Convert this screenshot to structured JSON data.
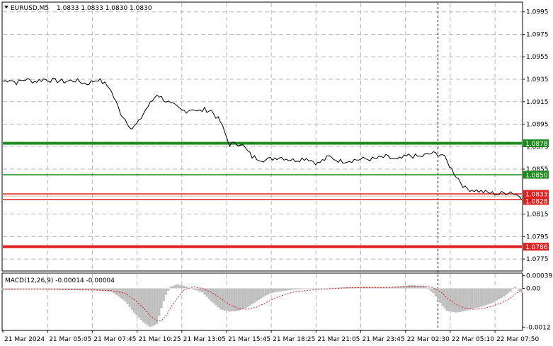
{
  "header": {
    "symbol_label": "EURUSD,M5",
    "ohlc": "1.0833 1.0833 1.0830 1.0830"
  },
  "macd": {
    "label": "MACD(12,26,9) -0.00014 -0.00004",
    "scale": [
      "0.00039",
      "0.00",
      "-0.0012"
    ]
  },
  "chart_data": [
    {
      "type": "line",
      "name": "price",
      "ylim": [
        1.0765,
        1.1003
      ],
      "y_ticks": [
        "1.0995",
        "1.0975",
        "1.0955",
        "1.0935",
        "1.0915",
        "1.0895",
        "1.0875",
        "1.0855",
        "1.0815",
        "1.0795",
        "1.0775"
      ],
      "x_labels": [
        "21 Mar 2024",
        "21 Mar 05:05",
        "21 Mar 07:45",
        "21 Mar 10:25",
        "21 Mar 13:05",
        "21 Mar 15:45",
        "21 Mar 18:25",
        "21 Mar 21:05",
        "21 Mar 23:45",
        "22 Mar 02:30",
        "22 Mar 05:10",
        "22 Mar 07:50"
      ],
      "x_count": 230,
      "x": [
        0,
        3,
        6,
        10,
        14,
        18,
        22,
        27,
        32,
        37,
        42,
        47,
        52,
        57,
        60,
        63,
        66,
        68,
        71,
        74,
        76,
        79,
        81,
        84,
        86,
        89,
        92,
        96,
        100,
        105,
        110,
        116,
        122,
        128,
        134,
        139,
        144,
        149,
        154,
        159,
        164,
        169,
        174,
        179,
        184,
        189,
        194,
        199,
        204,
        209,
        214,
        219,
        224,
        229
      ],
      "y": [
        1.0933,
        1.0935,
        1.0932,
        1.0935,
        1.0933,
        1.0935,
        1.0934,
        1.0933,
        1.0934,
        1.0931,
        1.0935,
        1.0928,
        1.0905,
        1.0891,
        1.0897,
        1.0908,
        1.0916,
        1.0922,
        1.0917,
        1.0913,
        1.0911,
        1.0907,
        1.0907,
        1.0909,
        1.0906,
        1.0908,
        1.0907,
        1.0897,
        1.0877,
        1.0878,
        1.0866,
        1.0863,
        1.0866,
        1.0863,
        1.0865,
        1.086,
        1.0866,
        1.0862,
        1.0863,
        1.0864,
        1.0864,
        1.0866,
        1.0863,
        1.0867,
        1.0866,
        1.0869,
        1.0868,
        1.0852,
        1.0838,
        1.0836,
        1.0834,
        1.0833,
        1.0835,
        1.083
      ],
      "levels": [
        {
          "value": 1.0878,
          "label": "1.0878",
          "color": "#1a8a1a",
          "weight": "thick"
        },
        {
          "value": 1.085,
          "label": "1.0850",
          "color": "#1a8a1a",
          "weight": "thin"
        },
        {
          "value": 1.0833,
          "label": "1.0833",
          "color": "#e02020",
          "weight": "thin"
        },
        {
          "value": 1.0828,
          "label": "1.0828",
          "color": "#e02020",
          "weight": "thin"
        },
        {
          "value": 1.0786,
          "label": "1.0786",
          "color": "#e02020",
          "weight": "thick"
        }
      ],
      "current_price": {
        "value": 1.0831,
        "color": "#c8c0a0"
      },
      "cursor_index": 192,
      "grid": true
    },
    {
      "type": "bar",
      "name": "macd",
      "ylim": [
        -0.00128,
        0.00045
      ],
      "x": [
        0,
        5,
        10,
        20,
        30,
        40,
        48,
        54,
        58,
        62,
        65,
        68,
        70,
        72,
        74,
        77,
        80,
        84,
        88,
        92,
        96,
        100,
        104,
        108,
        112,
        116,
        120,
        124,
        128,
        132,
        136,
        140,
        150,
        160,
        170,
        180,
        186,
        190,
        194,
        196,
        200,
        204,
        208,
        212,
        216,
        220,
        224,
        226,
        229
      ],
      "histogram": [
        -5e-05,
        -4e-05,
        -2e-05,
        -3e-05,
        -5e-05,
        -6e-05,
        -0.0001,
        -0.0004,
        -0.00075,
        -0.00105,
        -0.0012,
        -0.0011,
        -0.0006,
        -0.0002,
        5e-05,
        0.00012,
        8e-05,
        -3e-05,
        -0.00012,
        -0.0004,
        -0.00065,
        -0.00072,
        -0.0007,
        -0.00058,
        -0.0004,
        -0.00022,
        -0.00012,
        -8e-05,
        -4e-05,
        -2e-05,
        -1e-05,
        0.0,
        3e-05,
        5e-05,
        3e-05,
        0.0001,
        8e-05,
        -0.00015,
        -0.00055,
        -0.0007,
        -0.00075,
        -0.0007,
        -0.00062,
        -0.00055,
        -0.00045,
        -0.0003,
        -0.0001,
        5e-05,
        -0.00014
      ],
      "signal": [
        -2e-05,
        -3e-05,
        -3e-05,
        -3e-05,
        -4e-05,
        -5e-05,
        -7e-05,
        -0.00015,
        -0.00035,
        -0.0006,
        -0.00085,
        -0.001,
        -0.001,
        -0.00085,
        -0.0006,
        -0.0003,
        -5e-05,
        5e-05,
        0.0,
        -0.00012,
        -0.0003,
        -0.0005,
        -0.00062,
        -0.00065,
        -0.00058,
        -0.00045,
        -0.0003,
        -0.0002,
        -0.00012,
        -8e-05,
        -5e-05,
        -3e-05,
        1e-05,
        3e-05,
        3e-05,
        6e-05,
        7e-05,
        2e-05,
        -0.00015,
        -0.0003,
        -0.0005,
        -0.00062,
        -0.00065,
        -0.00062,
        -0.00055,
        -0.00045,
        -0.0003,
        -0.00018,
        -4e-05
      ],
      "histogram_color": "#c0c0c0",
      "signal_color": "#e02020"
    }
  ]
}
